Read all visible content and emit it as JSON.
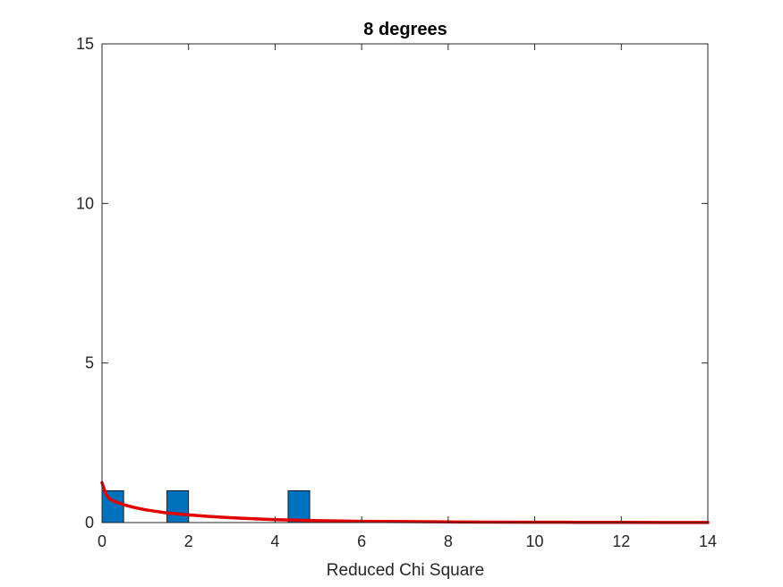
{
  "chart_data": {
    "type": "bar",
    "title": "8 degrees",
    "xlabel": "Reduced Chi Square",
    "ylabel": "",
    "xlim": [
      0,
      14
    ],
    "ylim": [
      0,
      15
    ],
    "xticks": [
      "0",
      "2",
      "4",
      "6",
      "8",
      "10",
      "12",
      "14"
    ],
    "yticks": [
      "0",
      "5",
      "10",
      "15"
    ],
    "grid": false,
    "histogram": {
      "bin_width": 0.5,
      "bins": [
        {
          "x_start": 0.0,
          "count": 1
        },
        {
          "x_start": 1.5,
          "count": 1
        },
        {
          "x_start": 4.3,
          "count": 1
        }
      ]
    },
    "fit_curve": {
      "x": [
        0.0,
        0.05,
        0.1,
        0.15,
        0.2,
        0.3,
        0.5,
        0.75,
        1.0,
        1.5,
        2.0,
        2.5,
        3.0,
        3.5,
        4.0,
        5.0,
        6.0,
        7.0,
        8.0,
        9.0,
        10.0,
        11.0,
        12.0,
        13.0,
        14.0
      ],
      "y": [
        1.25,
        1.05,
        0.88,
        0.78,
        0.72,
        0.66,
        0.56,
        0.47,
        0.4,
        0.3,
        0.24,
        0.19,
        0.15,
        0.12,
        0.09,
        0.06,
        0.04,
        0.03,
        0.02,
        0.015,
        0.01,
        0.008,
        0.006,
        0.004,
        0.003
      ]
    },
    "colors": {
      "bar_fill": "#0072BD",
      "bar_edge": "#000000",
      "curve": "#E00000",
      "axis": "#262626"
    }
  }
}
